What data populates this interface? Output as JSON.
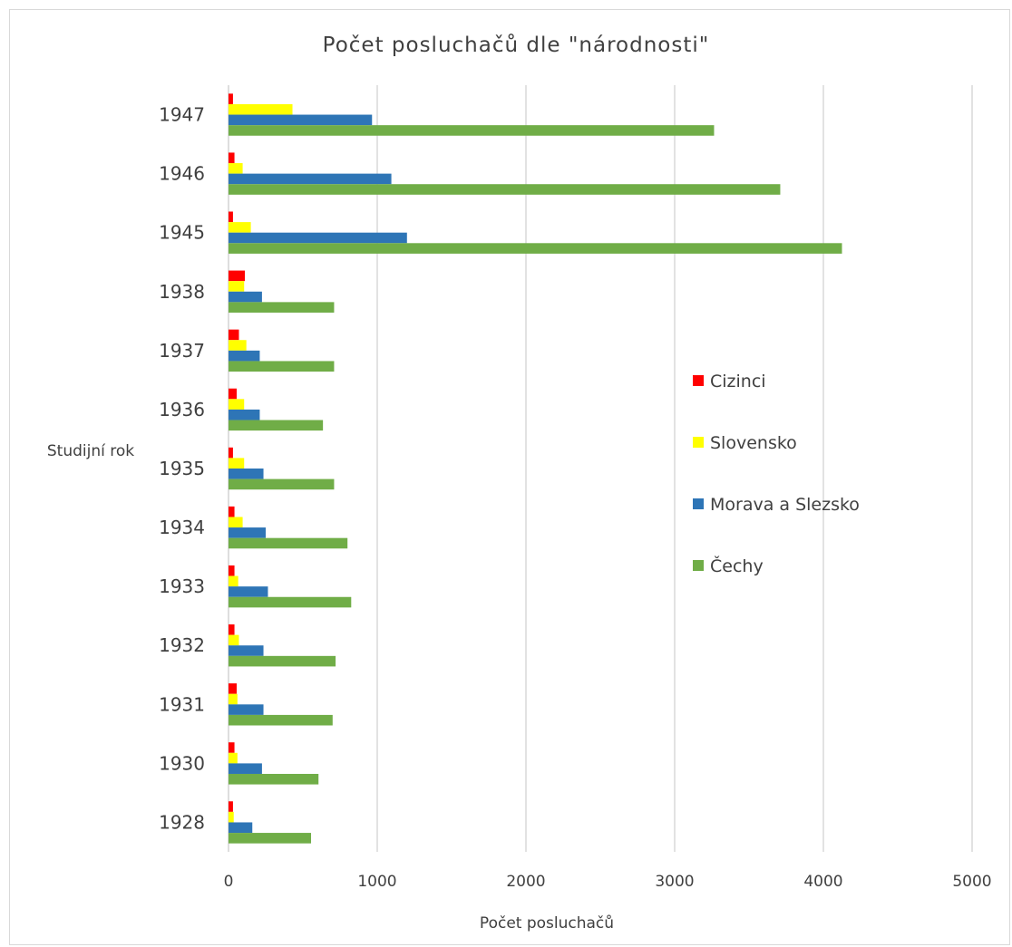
{
  "chart_data": {
    "type": "bar",
    "orientation": "horizontal",
    "title": "Počet posluchačů dle \"národnosti\"",
    "xlabel": "Počet posluchačů",
    "ylabel": "Studijní rok",
    "xlim": [
      0,
      5000
    ],
    "x_ticks": [
      0,
      1000,
      2000,
      3000,
      4000,
      5000
    ],
    "grid": "vertical",
    "legend_position": "right",
    "categories": [
      "1947",
      "1946",
      "1945",
      "1938",
      "1937",
      "1936",
      "1935",
      "1934",
      "1933",
      "1932",
      "1931",
      "1930",
      "1928"
    ],
    "series": [
      {
        "name": "Cizinci",
        "color": "#ff0000",
        "values": [
          30,
          40,
          30,
          110,
          70,
          55,
          30,
          40,
          40,
          40,
          55,
          40,
          30
        ]
      },
      {
        "name": "Slovensko",
        "color": "#ffff00",
        "values": [
          430,
          95,
          150,
          105,
          120,
          105,
          105,
          95,
          65,
          70,
          60,
          60,
          35
        ]
      },
      {
        "name": "Morava a Slezsko",
        "color": "#2e75b6",
        "values": [
          965,
          1095,
          1200,
          225,
          210,
          210,
          235,
          250,
          265,
          235,
          235,
          225,
          160
        ]
      },
      {
        "name": "Čechy",
        "color": "#70ad47",
        "values": [
          3265,
          3710,
          4125,
          710,
          710,
          635,
          710,
          800,
          825,
          720,
          700,
          605,
          555
        ]
      }
    ]
  }
}
